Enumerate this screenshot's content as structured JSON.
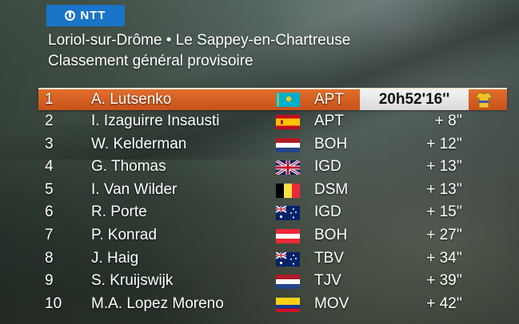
{
  "sponsor": {
    "logo_text": "NTT",
    "logo_color": "#1a74c8"
  },
  "stage": {
    "route": "Loriol-sur-Drôme • Le Sappey-en-Chartreuse",
    "classification": "Classement général provisoire"
  },
  "leader_colors": {
    "row": "#d8621f",
    "jersey": "#f2c12e"
  },
  "standings": [
    {
      "rank": "1",
      "name": "A. Lutsenko",
      "flag": "kazakhstan-flag",
      "team": "APT",
      "time": "20h52'16''"
    },
    {
      "rank": "2",
      "name": "I. Izaguirre Insausti",
      "flag": "spain-flag",
      "team": "APT",
      "time": "+ 8''"
    },
    {
      "rank": "3",
      "name": "W. Kelderman",
      "flag": "netherlands-flag",
      "team": "BOH",
      "time": "+ 12''"
    },
    {
      "rank": "4",
      "name": "G. Thomas",
      "flag": "united-kingdom-flag",
      "team": "IGD",
      "time": "+ 13''"
    },
    {
      "rank": "5",
      "name": "I. Van Wilder",
      "flag": "belgium-flag",
      "team": "DSM",
      "time": "+ 13''"
    },
    {
      "rank": "6",
      "name": "R. Porte",
      "flag": "australia-flag",
      "team": "IGD",
      "time": "+ 15''"
    },
    {
      "rank": "7",
      "name": "P. Konrad",
      "flag": "austria-flag",
      "team": "BOH",
      "time": "+ 27''"
    },
    {
      "rank": "8",
      "name": "J. Haig",
      "flag": "australia-flag",
      "team": "TBV",
      "time": "+ 34''"
    },
    {
      "rank": "9",
      "name": "S. Kruijswijk",
      "flag": "netherlands-flag",
      "team": "TJV",
      "time": "+ 39''"
    },
    {
      "rank": "10",
      "name": "M.A. Lopez Moreno",
      "flag": "colombia-flag",
      "team": "MOV",
      "time": "+ 42''"
    }
  ]
}
